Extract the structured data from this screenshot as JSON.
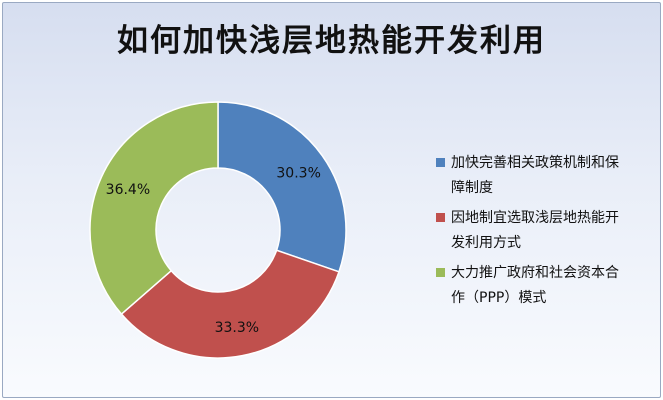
{
  "chart_data": {
    "type": "pie",
    "donut": true,
    "title": "如何加快浅层地热能开发利用",
    "series": [
      {
        "name": "加快完善相关政策机制和保障制度",
        "value": 30.3,
        "label": "30.3%",
        "color": "#4f81bd"
      },
      {
        "name": "因地制宜选取浅层地热能开发利用方式",
        "value": 33.3,
        "label": "33.3%",
        "color": "#c0504d"
      },
      {
        "name": "大力推广政府和社会资本合作（PPP）模式",
        "value": 36.4,
        "label": "36.4%",
        "color": "#9bbb59"
      }
    ],
    "legend_position": "right"
  }
}
